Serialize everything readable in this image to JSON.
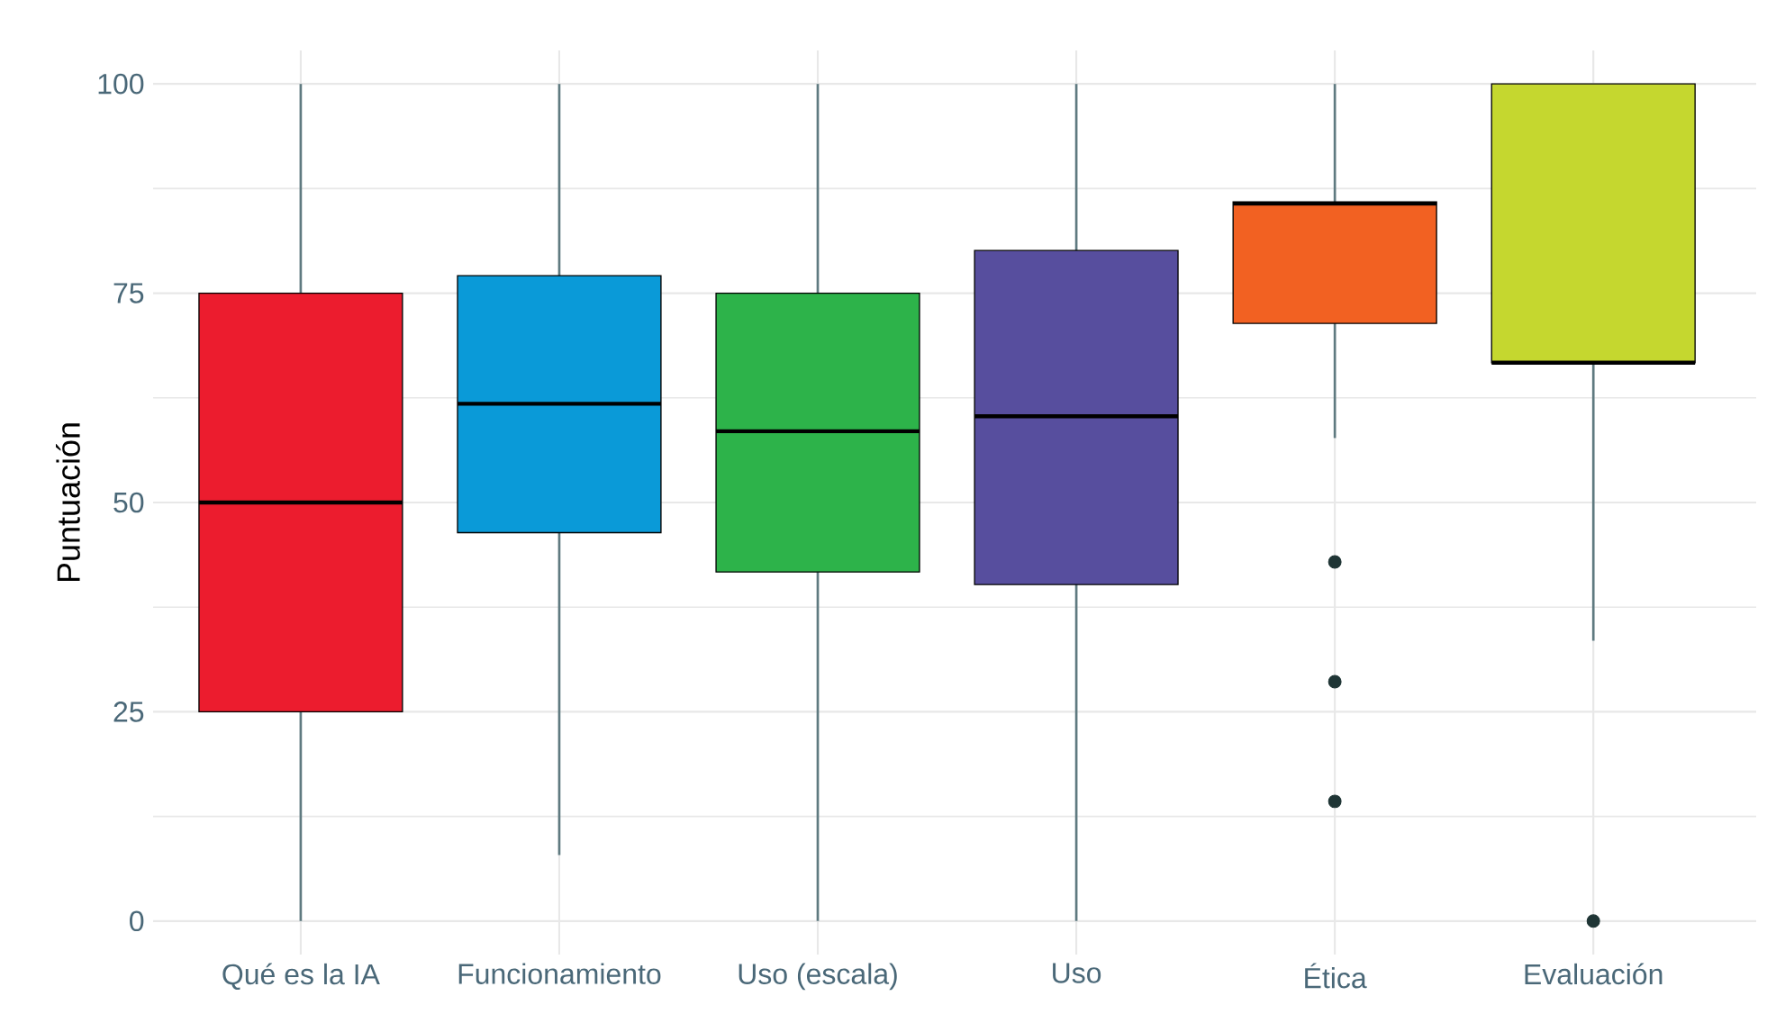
{
  "chart_data": {
    "type": "box",
    "ylabel": "Puntuación",
    "categories": [
      "Qué es la IA",
      "Funcionamiento",
      "Uso (escala)",
      "Uso",
      "Ética",
      "Evaluación"
    ],
    "colors": [
      "#ec1c2e",
      "#0a9ad8",
      "#2db34a",
      "#574e9e",
      "#f26122",
      "#c5d72f"
    ],
    "boxes": [
      {
        "low": 0,
        "q1": 25,
        "median": 50,
        "q3": 75,
        "high": 100
      },
      {
        "low": 7.9,
        "q1": 46.4,
        "median": 61.8,
        "q3": 77.1,
        "high": 100
      },
      {
        "low": 0,
        "q1": 41.7,
        "median": 58.5,
        "q3": 75,
        "high": 100
      },
      {
        "low": 0,
        "q1": 40.2,
        "median": 60.3,
        "q3": 80.1,
        "high": 100
      },
      {
        "low": 57.7,
        "q1": 71.4,
        "median": 85.7,
        "q3": 85.9,
        "high": 100,
        "outliers": [
          42.9,
          28.6,
          14.3
        ]
      },
      {
        "low": 33.5,
        "q1": 66.7,
        "median": 66.7,
        "q3": 100,
        "high": 100,
        "outliers": [
          0
        ]
      }
    ],
    "ylim": [
      -4,
      104
    ],
    "yticks": [
      0,
      25,
      50,
      75,
      100
    ],
    "grid": true
  }
}
